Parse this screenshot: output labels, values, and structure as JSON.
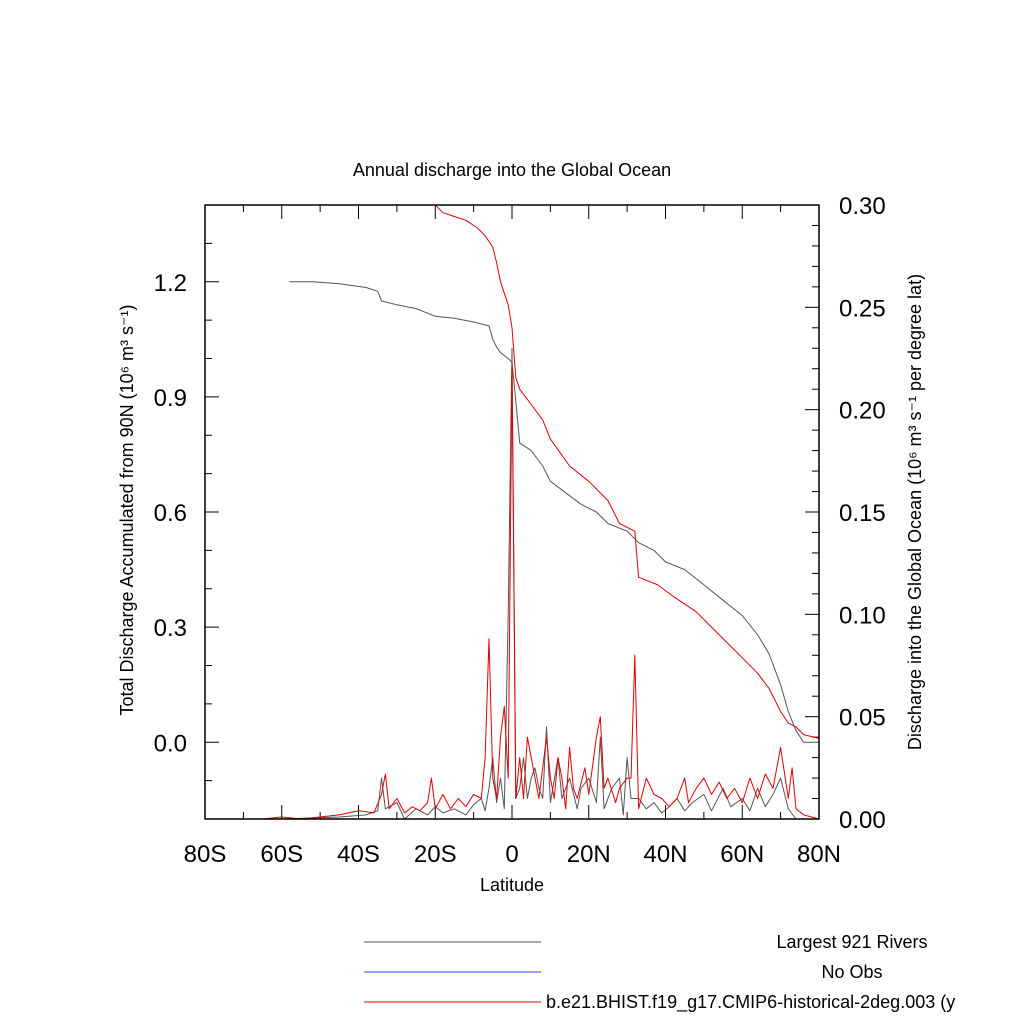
{
  "chart_data": {
    "type": "line",
    "title": "Annual discharge into the Global Ocean",
    "xlabel": "Latitude",
    "ylabel_left": "Total Discharge Accumulated from 90N (10⁶ m³ s⁻¹)",
    "ylabel_right": "Discharge into the Global Ocean (10⁶ m³ s⁻¹ per degree lat)",
    "xlim": [
      -80,
      80
    ],
    "ylim_left": [
      -0.2,
      1.4
    ],
    "ylim_right": [
      0,
      0.3
    ],
    "x_ticks": [
      "80S",
      "60S",
      "40S",
      "20S",
      "0",
      "20N",
      "40N",
      "60N",
      "80N"
    ],
    "y_ticks_left": [
      "0.0",
      "0.3",
      "0.6",
      "0.9",
      "1.2"
    ],
    "y_ticks_right": [
      "0.00",
      "0.05",
      "0.10",
      "0.15",
      "0.20",
      "0.25",
      "0.30"
    ],
    "series": [
      {
        "name": "Largest 921 Rivers",
        "axis": "left",
        "color": "#555555",
        "points": [
          [
            -58,
            1.2
          ],
          [
            -52,
            1.2
          ],
          [
            -45,
            1.195
          ],
          [
            -38,
            1.185
          ],
          [
            -35,
            1.175
          ],
          [
            -34,
            1.15
          ],
          [
            -30,
            1.14
          ],
          [
            -25,
            1.13
          ],
          [
            -20,
            1.11
          ],
          [
            -15,
            1.105
          ],
          [
            -10,
            1.095
          ],
          [
            -6,
            1.085
          ],
          [
            -5,
            1.05
          ],
          [
            -4,
            1.03
          ],
          [
            -3,
            1.015
          ],
          [
            -1,
            1.0
          ],
          [
            0,
            0.99
          ],
          [
            1,
            0.89
          ],
          [
            2,
            0.78
          ],
          [
            5,
            0.76
          ],
          [
            8,
            0.72
          ],
          [
            10,
            0.68
          ],
          [
            14,
            0.65
          ],
          [
            18,
            0.62
          ],
          [
            22,
            0.6
          ],
          [
            25,
            0.57
          ],
          [
            30,
            0.55
          ],
          [
            33,
            0.52
          ],
          [
            37,
            0.5
          ],
          [
            40,
            0.47
          ],
          [
            45,
            0.45
          ],
          [
            50,
            0.41
          ],
          [
            55,
            0.37
          ],
          [
            60,
            0.33
          ],
          [
            64,
            0.28
          ],
          [
            67,
            0.23
          ],
          [
            70,
            0.15
          ],
          [
            72,
            0.08
          ],
          [
            74,
            0.03
          ],
          [
            76,
            0.0
          ],
          [
            80,
            0.0
          ]
        ]
      },
      {
        "name": "No Obs",
        "axis": "left",
        "color": "#4040ff",
        "points": []
      },
      {
        "name": "b.e21.BHIST.f19_g17.CMIP6-historical-2deg.003 (y",
        "axis": "left",
        "color": "#e00000",
        "points": [
          [
            -20,
            1.4
          ],
          [
            -18,
            1.38
          ],
          [
            -15,
            1.37
          ],
          [
            -12,
            1.36
          ],
          [
            -9,
            1.34
          ],
          [
            -7,
            1.32
          ],
          [
            -5,
            1.29
          ],
          [
            -4,
            1.25
          ],
          [
            -3,
            1.2
          ],
          [
            -2,
            1.17
          ],
          [
            -1,
            1.14
          ],
          [
            0,
            1.08
          ],
          [
            1,
            0.95
          ],
          [
            2,
            0.92
          ],
          [
            5,
            0.88
          ],
          [
            8,
            0.84
          ],
          [
            10,
            0.79
          ],
          [
            15,
            0.72
          ],
          [
            20,
            0.68
          ],
          [
            25,
            0.63
          ],
          [
            28,
            0.57
          ],
          [
            32,
            0.55
          ],
          [
            33,
            0.43
          ],
          [
            38,
            0.41
          ],
          [
            42,
            0.38
          ],
          [
            45,
            0.36
          ],
          [
            48,
            0.34
          ],
          [
            52,
            0.3
          ],
          [
            56,
            0.26
          ],
          [
            60,
            0.22
          ],
          [
            64,
            0.18
          ],
          [
            67,
            0.14
          ],
          [
            70,
            0.08
          ],
          [
            72,
            0.05
          ],
          [
            74,
            0.04
          ],
          [
            76,
            0.02
          ],
          [
            80,
            0.01
          ]
        ]
      },
      {
        "name": "Largest 921 Rivers",
        "axis": "right",
        "color": "#555555",
        "points": [
          [
            -80,
            0.0
          ],
          [
            -60,
            0.0
          ],
          [
            -45,
            0.001
          ],
          [
            -38,
            0.002
          ],
          [
            -35,
            0.004
          ],
          [
            -34,
            0.02
          ],
          [
            -33,
            0.005
          ],
          [
            -30,
            0.008
          ],
          [
            -28,
            0.0
          ],
          [
            -25,
            0.005
          ],
          [
            -22,
            0.002
          ],
          [
            -20,
            0.006
          ],
          [
            -18,
            0.003
          ],
          [
            -15,
            0.005
          ],
          [
            -12,
            0.002
          ],
          [
            -10,
            0.007
          ],
          [
            -8,
            0.01
          ],
          [
            -7,
            0.004
          ],
          [
            -6,
            0.015
          ],
          [
            -5,
            0.03
          ],
          [
            -4,
            0.008
          ],
          [
            -3,
            0.02
          ],
          [
            -2,
            0.005
          ],
          [
            -1,
            0.1
          ],
          [
            0,
            0.23
          ],
          [
            1,
            0.01
          ],
          [
            2,
            0.015
          ],
          [
            3,
            0.03
          ],
          [
            4,
            0.01
          ],
          [
            5,
            0.02
          ],
          [
            6,
            0.025
          ],
          [
            7,
            0.015
          ],
          [
            8,
            0.01
          ],
          [
            9,
            0.045
          ],
          [
            10,
            0.008
          ],
          [
            12,
            0.03
          ],
          [
            13,
            0.01
          ],
          [
            15,
            0.02
          ],
          [
            17,
            0.005
          ],
          [
            18,
            0.015
          ],
          [
            20,
            0.02
          ],
          [
            22,
            0.008
          ],
          [
            23,
            0.04
          ],
          [
            24,
            0.005
          ],
          [
            26,
            0.015
          ],
          [
            28,
            0.02
          ],
          [
            29,
            0.002
          ],
          [
            30,
            0.03
          ],
          [
            31,
            0.01
          ],
          [
            33,
            0.01
          ],
          [
            35,
            0.005
          ],
          [
            37,
            0.008
          ],
          [
            39,
            0.003
          ],
          [
            41,
            0.006
          ],
          [
            43,
            0.01
          ],
          [
            45,
            0.004
          ],
          [
            47,
            0.008
          ],
          [
            50,
            0.012
          ],
          [
            52,
            0.004
          ],
          [
            55,
            0.015
          ],
          [
            57,
            0.006
          ],
          [
            60,
            0.01
          ],
          [
            62,
            0.004
          ],
          [
            64,
            0.015
          ],
          [
            66,
            0.006
          ],
          [
            68,
            0.012
          ],
          [
            70,
            0.02
          ],
          [
            72,
            0.005
          ],
          [
            74,
            0.0
          ],
          [
            80,
            0.0
          ]
        ]
      },
      {
        "name": "b.e21.BHIST.f19_g17.CMIP6-historical-2deg.003 (y",
        "axis": "right",
        "color": "#e00000",
        "points": [
          [
            -80,
            0.0
          ],
          [
            -65,
            0.0
          ],
          [
            -60,
            0.001
          ],
          [
            -55,
            0.0
          ],
          [
            -45,
            0.002
          ],
          [
            -40,
            0.004
          ],
          [
            -36,
            0.003
          ],
          [
            -34,
            0.012
          ],
          [
            -33,
            0.022
          ],
          [
            -32,
            0.005
          ],
          [
            -30,
            0.01
          ],
          [
            -28,
            0.003
          ],
          [
            -26,
            0.006
          ],
          [
            -24,
            0.004
          ],
          [
            -22,
            0.008
          ],
          [
            -21,
            0.02
          ],
          [
            -20,
            0.005
          ],
          [
            -18,
            0.012
          ],
          [
            -16,
            0.005
          ],
          [
            -14,
            0.01
          ],
          [
            -12,
            0.006
          ],
          [
            -10,
            0.012
          ],
          [
            -8,
            0.01
          ],
          [
            -7,
            0.03
          ],
          [
            -6,
            0.088
          ],
          [
            -5,
            0.02
          ],
          [
            -4,
            0.01
          ],
          [
            -3,
            0.04
          ],
          [
            -2,
            0.055
          ],
          [
            -1,
            0.02
          ],
          [
            0,
            0.22
          ],
          [
            1,
            0.01
          ],
          [
            2,
            0.03
          ],
          [
            3,
            0.01
          ],
          [
            4,
            0.04
          ],
          [
            5,
            0.03
          ],
          [
            6,
            0.02
          ],
          [
            7,
            0.01
          ],
          [
            8,
            0.025
          ],
          [
            9,
            0.04
          ],
          [
            10,
            0.02
          ],
          [
            11,
            0.01
          ],
          [
            12,
            0.03
          ],
          [
            13,
            0.02
          ],
          [
            14,
            0.005
          ],
          [
            15,
            0.035
          ],
          [
            16,
            0.015
          ],
          [
            17,
            0.01
          ],
          [
            19,
            0.025
          ],
          [
            20,
            0.012
          ],
          [
            22,
            0.04
          ],
          [
            23,
            0.05
          ],
          [
            24,
            0.015
          ],
          [
            25,
            0.02
          ],
          [
            27,
            0.008
          ],
          [
            28,
            0.015
          ],
          [
            30,
            0.02
          ],
          [
            31,
            0.02
          ],
          [
            32,
            0.08
          ],
          [
            33,
            0.005
          ],
          [
            35,
            0.02
          ],
          [
            37,
            0.012
          ],
          [
            39,
            0.01
          ],
          [
            41,
            0.006
          ],
          [
            43,
            0.01
          ],
          [
            45,
            0.02
          ],
          [
            46,
            0.008
          ],
          [
            48,
            0.015
          ],
          [
            50,
            0.02
          ],
          [
            52,
            0.012
          ],
          [
            54,
            0.018
          ],
          [
            56,
            0.01
          ],
          [
            58,
            0.015
          ],
          [
            60,
            0.008
          ],
          [
            62,
            0.02
          ],
          [
            64,
            0.01
          ],
          [
            66,
            0.022
          ],
          [
            68,
            0.015
          ],
          [
            70,
            0.035
          ],
          [
            72,
            0.01
          ],
          [
            73,
            0.025
          ],
          [
            74,
            0.005
          ],
          [
            76,
            0.002
          ],
          [
            80,
            0.0
          ]
        ]
      }
    ],
    "legend": [
      {
        "label": "Largest 921 Rivers",
        "color": "#555555"
      },
      {
        "label": "No Obs",
        "color": "#4040ff"
      },
      {
        "label": "b.e21.BHIST.f19_g17.CMIP6-historical-2deg.003 (y",
        "color": "#e00000"
      }
    ],
    "legend_placement": "bottom"
  }
}
